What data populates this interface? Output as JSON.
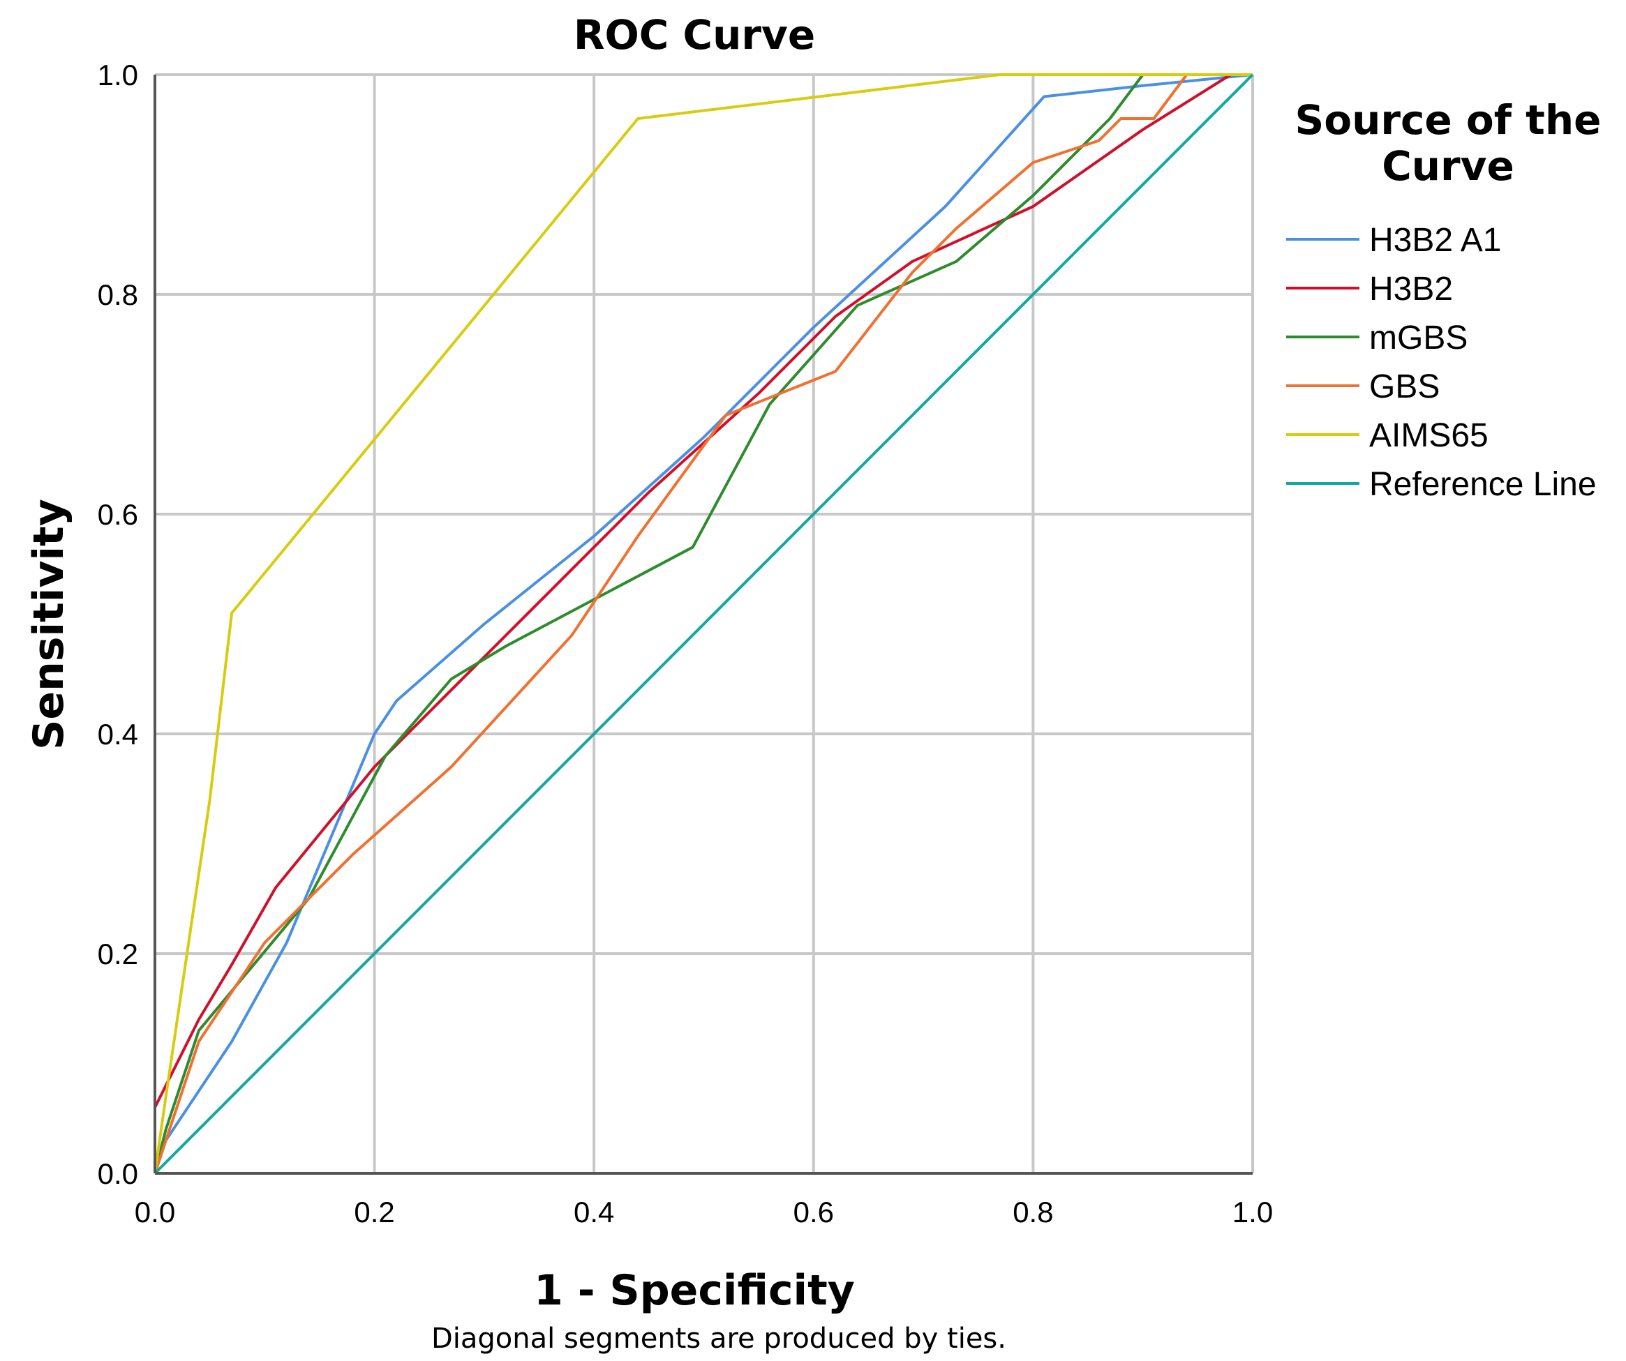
{
  "chart_data": {
    "type": "line",
    "title": "ROC Curve",
    "xlabel": "1 - Specificity",
    "ylabel": "Sensitivity",
    "footnote": "Diagonal segments are produced by ties.",
    "xlim": [
      0,
      1
    ],
    "ylim": [
      0,
      1
    ],
    "xticks": [
      "0.0",
      "0.2",
      "0.4",
      "0.6",
      "0.8",
      "1.0"
    ],
    "yticks": [
      "0.0",
      "0.2",
      "0.4",
      "0.6",
      "0.8",
      "1.0"
    ],
    "grid": true,
    "legend": {
      "title_lines": [
        "Source of the",
        "Curve"
      ],
      "placement": "right"
    },
    "series": [
      {
        "name": "H3B2 A1",
        "color": "#4a90e2",
        "points": [
          [
            0,
            0
          ],
          [
            0.01,
            0.03
          ],
          [
            0.07,
            0.12
          ],
          [
            0.12,
            0.21
          ],
          [
            0.2,
            0.4
          ],
          [
            0.22,
            0.43
          ],
          [
            0.3,
            0.5
          ],
          [
            0.4,
            0.58
          ],
          [
            0.5,
            0.67
          ],
          [
            0.6,
            0.77
          ],
          [
            0.72,
            0.88
          ],
          [
            0.81,
            0.98
          ],
          [
            0.9,
            0.99
          ],
          [
            1,
            1
          ]
        ]
      },
      {
        "name": "H3B2",
        "color": "#d0102a",
        "points": [
          [
            0,
            0
          ],
          [
            0,
            0.06
          ],
          [
            0.04,
            0.14
          ],
          [
            0.07,
            0.19
          ],
          [
            0.11,
            0.26
          ],
          [
            0.2,
            0.37
          ],
          [
            0.28,
            0.45
          ],
          [
            0.36,
            0.53
          ],
          [
            0.45,
            0.62
          ],
          [
            0.55,
            0.71
          ],
          [
            0.62,
            0.78
          ],
          [
            0.69,
            0.83
          ],
          [
            0.8,
            0.88
          ],
          [
            0.9,
            0.95
          ],
          [
            0.98,
            1
          ],
          [
            1,
            1
          ]
        ]
      },
      {
        "name": "mGBS",
        "color": "#2e8b2e",
        "points": [
          [
            0,
            0
          ],
          [
            0.01,
            0.04
          ],
          [
            0.04,
            0.13
          ],
          [
            0.09,
            0.19
          ],
          [
            0.14,
            0.25
          ],
          [
            0.21,
            0.38
          ],
          [
            0.27,
            0.45
          ],
          [
            0.32,
            0.48
          ],
          [
            0.49,
            0.57
          ],
          [
            0.56,
            0.7
          ],
          [
            0.64,
            0.79
          ],
          [
            0.73,
            0.83
          ],
          [
            0.8,
            0.89
          ],
          [
            0.87,
            0.96
          ],
          [
            0.9,
            1
          ],
          [
            1,
            1
          ]
        ]
      },
      {
        "name": "GBS",
        "color": "#f07030",
        "points": [
          [
            0,
            0
          ],
          [
            0.01,
            0.03
          ],
          [
            0.04,
            0.12
          ],
          [
            0.1,
            0.21
          ],
          [
            0.18,
            0.29
          ],
          [
            0.27,
            0.37
          ],
          [
            0.38,
            0.49
          ],
          [
            0.44,
            0.58
          ],
          [
            0.52,
            0.69
          ],
          [
            0.62,
            0.73
          ],
          [
            0.69,
            0.82
          ],
          [
            0.73,
            0.86
          ],
          [
            0.8,
            0.92
          ],
          [
            0.86,
            0.94
          ],
          [
            0.88,
            0.96
          ],
          [
            0.91,
            0.96
          ],
          [
            0.94,
            1
          ],
          [
            1,
            1
          ]
        ]
      },
      {
        "name": "AIMS65",
        "color": "#d8cc10",
        "points": [
          [
            0,
            0
          ],
          [
            0.01,
            0.07
          ],
          [
            0.05,
            0.34
          ],
          [
            0.07,
            0.51
          ],
          [
            0.44,
            0.96
          ],
          [
            0.77,
            1
          ],
          [
            1,
            1
          ]
        ]
      },
      {
        "name": "Reference Line",
        "color": "#10a8a0",
        "points": [
          [
            0,
            0
          ],
          [
            1,
            1
          ]
        ]
      }
    ]
  }
}
